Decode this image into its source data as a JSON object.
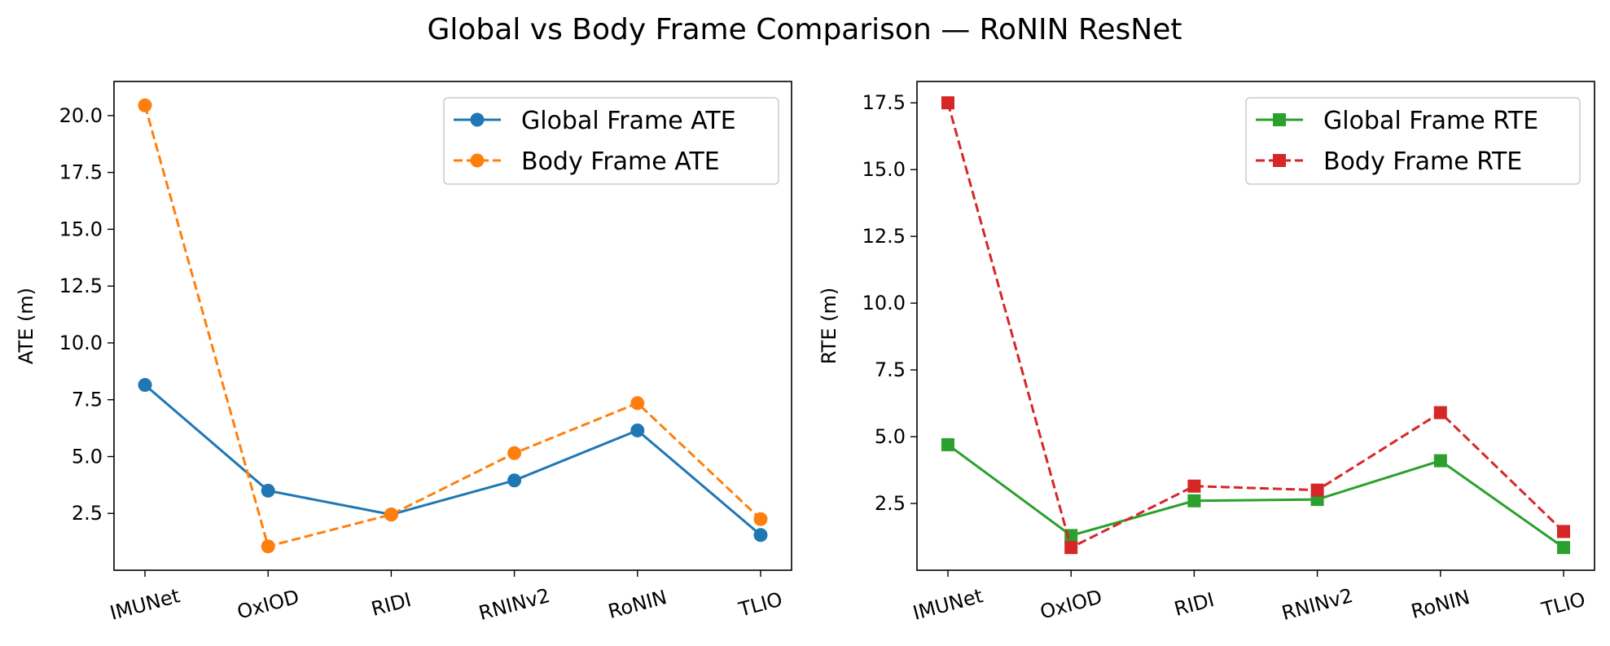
{
  "figure": {
    "title": "Global vs Body Frame Comparison — RoNIN ResNet"
  },
  "chart_data": [
    {
      "type": "line",
      "title": "",
      "xlabel": "",
      "ylabel": "ATE (m)",
      "categories": [
        "IMUNet",
        "OxIOD",
        "RIDI",
        "RNINv2",
        "RoNIN",
        "TLIO"
      ],
      "ylim": [
        0.0,
        21.5
      ],
      "yticks": [
        2.5,
        5.0,
        7.5,
        10.0,
        12.5,
        15.0,
        17.5,
        20.0
      ],
      "ytick_labels": [
        "2.5",
        "5.0",
        "7.5",
        "10.0",
        "12.5",
        "15.0",
        "17.5",
        "20.0"
      ],
      "legend_position": "upper right",
      "grid": false,
      "series": [
        {
          "name": "Global Frame ATE",
          "values": [
            8.15,
            3.5,
            2.45,
            3.95,
            6.15,
            1.55
          ],
          "color": "#1f77b4",
          "marker": "circle",
          "line": "solid"
        },
        {
          "name": "Body Frame ATE",
          "values": [
            20.45,
            1.05,
            2.45,
            5.15,
            7.35,
            2.25
          ],
          "color": "#ff7f0e",
          "marker": "circle",
          "line": "dashed"
        }
      ]
    },
    {
      "type": "line",
      "title": "",
      "xlabel": "",
      "ylabel": "RTE (m)",
      "categories": [
        "IMUNet",
        "OxIOD",
        "RIDI",
        "RNINv2",
        "RoNIN",
        "TLIO"
      ],
      "ylim": [
        0.0,
        18.3
      ],
      "yticks": [
        2.5,
        5.0,
        7.5,
        10.0,
        12.5,
        15.0,
        17.5
      ],
      "ytick_labels": [
        "2.5",
        "5.0",
        "7.5",
        "10.0",
        "12.5",
        "15.0",
        "17.5"
      ],
      "legend_position": "upper right",
      "grid": false,
      "series": [
        {
          "name": "Global Frame RTE",
          "values": [
            4.7,
            1.3,
            2.6,
            2.65,
            4.1,
            0.85
          ],
          "color": "#2ca02c",
          "marker": "square",
          "line": "solid"
        },
        {
          "name": "Body Frame RTE",
          "values": [
            17.5,
            0.85,
            3.15,
            3.0,
            5.9,
            1.45
          ],
          "color": "#d62728",
          "marker": "square",
          "line": "dashed"
        }
      ]
    }
  ]
}
